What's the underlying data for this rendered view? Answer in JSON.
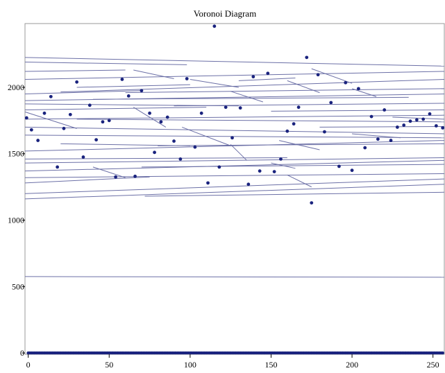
{
  "chart_data": {
    "type": "scatter",
    "title": "Voronoi Diagram",
    "xlabel": "",
    "ylabel": "",
    "xlim": [
      -2,
      257
    ],
    "ylim": [
      -10,
      2480
    ],
    "x_ticks": [
      0,
      50,
      100,
      150,
      200,
      250
    ],
    "y_ticks": [
      0,
      500,
      1000,
      1500,
      2000
    ],
    "grid": false,
    "legend": "none",
    "colors": {
      "points": "#1a237e",
      "edges": "#6b6fa6",
      "frame": "#9a9a9a"
    },
    "series": [
      {
        "type": "scatter",
        "points": [
          [
            -1,
            1770
          ],
          [
            2,
            1680
          ],
          [
            6,
            1600
          ],
          [
            10,
            1805
          ],
          [
            14,
            1930
          ],
          [
            18,
            1400
          ],
          [
            22,
            1690
          ],
          [
            26,
            1795
          ],
          [
            30,
            2040
          ],
          [
            34,
            1475
          ],
          [
            38,
            1865
          ],
          [
            42,
            1605
          ],
          [
            46,
            1740
          ],
          [
            50,
            1750
          ],
          [
            54,
            1325
          ],
          [
            58,
            2060
          ],
          [
            62,
            1935
          ],
          [
            66,
            1330
          ],
          [
            70,
            1975
          ],
          [
            75,
            1805
          ],
          [
            78,
            1510
          ],
          [
            82,
            1740
          ],
          [
            86,
            1775
          ],
          [
            90,
            1595
          ],
          [
            94,
            1460
          ],
          [
            98,
            2065
          ],
          [
            103,
            1550
          ],
          [
            107,
            1805
          ],
          [
            111,
            1280
          ],
          [
            115,
            2460
          ],
          [
            118,
            1400
          ],
          [
            122,
            1850
          ],
          [
            126,
            1620
          ],
          [
            131,
            1845
          ],
          [
            136,
            1270
          ],
          [
            139,
            2080
          ],
          [
            143,
            1370
          ],
          [
            148,
            2105
          ],
          [
            152,
            1365
          ],
          [
            156,
            1460
          ],
          [
            160,
            1670
          ],
          [
            164,
            1725
          ],
          [
            167,
            1850
          ],
          [
            172,
            2225
          ],
          [
            175,
            1130
          ],
          [
            179,
            2095
          ],
          [
            183,
            1665
          ],
          [
            187,
            1885
          ],
          [
            192,
            1405
          ],
          [
            196,
            2035
          ],
          [
            200,
            1375
          ],
          [
            204,
            1990
          ],
          [
            208,
            1545
          ],
          [
            212,
            1780
          ],
          [
            216,
            1610
          ],
          [
            220,
            1830
          ],
          [
            224,
            1600
          ],
          [
            228,
            1700
          ],
          [
            232,
            1715
          ],
          [
            236,
            1745
          ],
          [
            240,
            1755
          ],
          [
            244,
            1760
          ],
          [
            248,
            1800
          ],
          [
            252,
            1710
          ],
          [
            256,
            1695
          ]
        ]
      },
      {
        "type": "scatter",
        "name": "",
        "y_constant": 0,
        "x_from": 0,
        "x_to": 256,
        "x_step": 1
      }
    ],
    "edges": [
      [
        [
          -2,
          2225
        ],
        [
          257,
          2160
        ]
      ],
      [
        [
          -2,
          2190
        ],
        [
          98,
          2170
        ]
      ],
      [
        [
          -2,
          2120
        ],
        [
          60,
          2130
        ]
      ],
      [
        [
          -2,
          2060
        ],
        [
          257,
          2120
        ]
      ],
      [
        [
          30,
          2000
        ],
        [
          100,
          2020
        ]
      ],
      [
        [
          20,
          1965
        ],
        [
          257,
          2060
        ]
      ],
      [
        [
          -2,
          1950
        ],
        [
          70,
          1975
        ]
      ],
      [
        [
          60,
          1960
        ],
        [
          257,
          1990
        ]
      ],
      [
        [
          -2,
          1900
        ],
        [
          257,
          1950
        ]
      ],
      [
        [
          40,
          1910
        ],
        [
          235,
          1925
        ]
      ],
      [
        [
          -2,
          1875
        ],
        [
          130,
          1860
        ]
      ],
      [
        [
          -2,
          1830
        ],
        [
          110,
          1850
        ]
      ],
      [
        [
          90,
          1860
        ],
        [
          257,
          1880
        ]
      ],
      [
        [
          150,
          1820
        ],
        [
          257,
          1830
        ]
      ],
      [
        [
          -2,
          1760
        ],
        [
          257,
          1790
        ]
      ],
      [
        [
          30,
          1760
        ],
        [
          257,
          1740
        ]
      ],
      [
        [
          -2,
          1700
        ],
        [
          257,
          1650
        ]
      ],
      [
        [
          180,
          1700
        ],
        [
          257,
          1705
        ]
      ],
      [
        [
          -2,
          1640
        ],
        [
          257,
          1620
        ]
      ],
      [
        [
          20,
          1575
        ],
        [
          100,
          1560
        ]
      ],
      [
        [
          -2,
          1520
        ],
        [
          257,
          1600
        ]
      ],
      [
        [
          80,
          1560
        ],
        [
          257,
          1575
        ]
      ],
      [
        [
          -2,
          1460
        ],
        [
          160,
          1470
        ]
      ],
      [
        [
          -2,
          1430
        ],
        [
          257,
          1470
        ]
      ],
      [
        [
          -2,
          1370
        ],
        [
          257,
          1450
        ]
      ],
      [
        [
          70,
          1400
        ],
        [
          257,
          1420
        ]
      ],
      [
        [
          -2,
          1320
        ],
        [
          257,
          1350
        ]
      ],
      [
        [
          -2,
          1280
        ],
        [
          75,
          1325
        ]
      ],
      [
        [
          -2,
          1200
        ],
        [
          257,
          1310
        ]
      ],
      [
        [
          -2,
          1160
        ],
        [
          257,
          1270
        ]
      ],
      [
        [
          72,
          1180
        ],
        [
          257,
          1210
        ]
      ],
      [
        [
          -2,
          1815
        ],
        [
          30,
          1690
        ]
      ],
      [
        [
          65,
          2130
        ],
        [
          90,
          2065
        ]
      ],
      [
        [
          100,
          2060
        ],
        [
          130,
          2000
        ]
      ],
      [
        [
          130,
          2050
        ],
        [
          165,
          2070
        ]
      ],
      [
        [
          160,
          2050
        ],
        [
          180,
          1960
        ]
      ],
      [
        [
          125,
          1970
        ],
        [
          145,
          1890
        ]
      ],
      [
        [
          175,
          2140
        ],
        [
          200,
          2030
        ]
      ],
      [
        [
          200,
          1990
        ],
        [
          215,
          1930
        ]
      ],
      [
        [
          65,
          1850
        ],
        [
          85,
          1700
        ]
      ],
      [
        [
          95,
          1700
        ],
        [
          125,
          1560
        ]
      ],
      [
        [
          155,
          1600
        ],
        [
          180,
          1530
        ]
      ],
      [
        [
          150,
          1430
        ],
        [
          165,
          1390
        ]
      ],
      [
        [
          160,
          1340
        ],
        [
          175,
          1250
        ]
      ],
      [
        [
          40,
          1400
        ],
        [
          60,
          1320
        ]
      ],
      [
        [
          125,
          1570
        ],
        [
          135,
          1450
        ]
      ],
      [
        [
          200,
          1650
        ],
        [
          230,
          1620
        ]
      ],
      [
        [
          225,
          1775
        ],
        [
          257,
          1760
        ]
      ],
      [
        [
          -2,
          575
        ],
        [
          257,
          570
        ]
      ]
    ]
  }
}
